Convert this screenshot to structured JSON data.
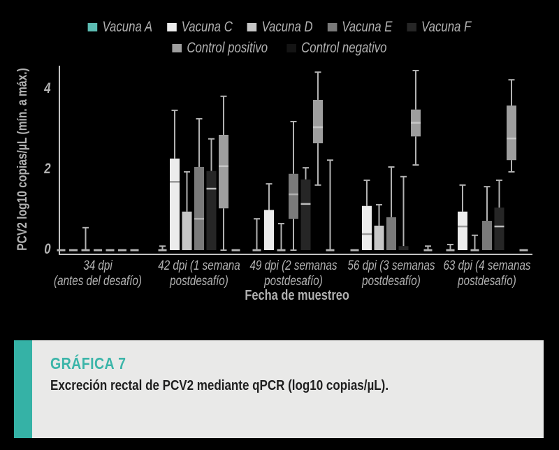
{
  "caption": {
    "title": "GRÁFICA 7",
    "subtitle": "Excreción rectal de PCV2 mediante qPCR (log10 copias/µL)."
  },
  "colors": {
    "background": "#000000",
    "text": "#b2b2b2",
    "axis": "#c2c2c2",
    "whisker": "#b2b2b2",
    "caption_bg": "#e9e9e8",
    "caption_bar": "#35b2a6",
    "caption_title": "#3cb5a9",
    "caption_text": "#1f1f1f"
  },
  "chart_data": {
    "type": "boxplot",
    "title": "",
    "xlabel": "Fecha de muestreo",
    "ylabel": "PCV2 log10 copias/µL (mín. a máx.)",
    "ylim": [
      0,
      4.6
    ],
    "yticks": [
      0,
      2,
      4
    ],
    "grid": false,
    "legend_position": "top",
    "groups": [
      {
        "line1": "34 dpi",
        "line2": "(antes del desafío)"
      },
      {
        "line1": "42 dpi (1 semana",
        "line2": "postdesafío)"
      },
      {
        "line1": "49 dpi (2 semanas",
        "line2": "postdesafío)"
      },
      {
        "line1": "56 dpi (3 semanas",
        "line2": "postdesafío)"
      },
      {
        "line1": "63 dpi (4 semanas",
        "line2": "postdesafío)"
      }
    ],
    "series": [
      {
        "name": "Vacuna A",
        "color": "#5cbcb2",
        "median_color": "#3a8e86",
        "legend_row": 1,
        "boxes": [
          {
            "min": 0,
            "q1": 0,
            "med": 0,
            "q3": 0,
            "max": 0
          },
          {
            "min": 0,
            "q1": 0,
            "med": 0,
            "q3": 0,
            "max": 0.1
          },
          {
            "min": 0,
            "q1": 0,
            "med": 0,
            "q3": 0,
            "max": 0.78
          },
          {
            "min": 0,
            "q1": 0,
            "med": 0,
            "q3": 0,
            "max": 0
          },
          {
            "min": 0,
            "q1": 0,
            "med": 0,
            "q3": 0,
            "max": 0.14
          }
        ]
      },
      {
        "name": "Vacuna C",
        "color": "#ececec",
        "median_color": "#9a9a9a",
        "legend_row": 1,
        "boxes": [
          {
            "min": 0,
            "q1": 0,
            "med": 0,
            "q3": 0,
            "max": 0
          },
          {
            "min": 0,
            "q1": 0,
            "med": 1.7,
            "q3": 2.28,
            "max": 3.48
          },
          {
            "min": 0,
            "q1": 0,
            "med": 0.03,
            "q3": 1.0,
            "max": 1.65
          },
          {
            "min": 0,
            "q1": 0,
            "med": 0.4,
            "q3": 1.1,
            "max": 1.74
          },
          {
            "min": 0,
            "q1": 0,
            "med": 0.59,
            "q3": 0.96,
            "max": 1.62
          }
        ]
      },
      {
        "name": "Vacuna D",
        "color": "#c6c6c6",
        "median_color": "#8f8f8f",
        "legend_row": 1,
        "boxes": [
          {
            "min": 0,
            "q1": 0,
            "med": 0,
            "q3": 0,
            "max": 0.56
          },
          {
            "min": 0,
            "q1": 0,
            "med": 0.02,
            "q3": 0.96,
            "max": 1.95
          },
          {
            "min": 0,
            "q1": 0,
            "med": 0,
            "q3": 0,
            "max": 0.66
          },
          {
            "min": 0,
            "q1": 0,
            "med": 0.02,
            "q3": 0.61,
            "max": 1.13
          },
          {
            "min": 0,
            "q1": 0,
            "med": 0,
            "q3": 0,
            "max": 0.37
          }
        ]
      },
      {
        "name": "Vacuna E",
        "color": "#7a7a7a",
        "median_color": "#b0b0b0",
        "legend_row": 1,
        "boxes": [
          {
            "min": 0,
            "q1": 0,
            "med": 0,
            "q3": 0,
            "max": 0
          },
          {
            "min": 0,
            "q1": 0,
            "med": 0.78,
            "q3": 2.07,
            "max": 3.27
          },
          {
            "min": 0,
            "q1": 0.78,
            "med": 1.39,
            "q3": 1.9,
            "max": 3.2
          },
          {
            "min": 0,
            "q1": 0,
            "med": 0.03,
            "q3": 0.82,
            "max": 2.07
          },
          {
            "min": 0,
            "q1": 0,
            "med": 0.03,
            "q3": 0.73,
            "max": 1.58
          }
        ]
      },
      {
        "name": "Vacuna F",
        "color": "#262626",
        "median_color": "#bdbdbd",
        "legend_row": 1,
        "boxes": [
          {
            "min": 0,
            "q1": 0,
            "med": 0,
            "q3": 0,
            "max": 0
          },
          {
            "min": 0,
            "q1": 0,
            "med": 1.53,
            "q3": 1.97,
            "max": 2.77
          },
          {
            "min": 0,
            "q1": 0,
            "med": 1.15,
            "q3": 1.76,
            "max": 2.05
          },
          {
            "min": 0,
            "q1": 0,
            "med": 0.03,
            "q3": 0.1,
            "max": 1.83
          },
          {
            "min": 0,
            "q1": 0,
            "med": 0.59,
            "q3": 1.06,
            "max": 1.74
          }
        ]
      },
      {
        "name": "Control positivo",
        "color": "#9e9e9e",
        "median_color": "#c6c6c6",
        "legend_row": 2,
        "boxes": [
          {
            "min": 0,
            "q1": 0,
            "med": 0,
            "q3": 0,
            "max": 0
          },
          {
            "min": 0,
            "q1": 1.04,
            "med": 2.09,
            "q3": 2.87,
            "max": 3.83
          },
          {
            "min": 1.62,
            "q1": 2.66,
            "med": 3.06,
            "q3": 3.74,
            "max": 4.43
          },
          {
            "min": 2.12,
            "q1": 2.83,
            "med": 3.17,
            "q3": 3.5,
            "max": 4.47
          },
          {
            "min": 1.95,
            "q1": 2.24,
            "med": 2.78,
            "q3": 3.6,
            "max": 4.24
          }
        ]
      },
      {
        "name": "Control negativo",
        "color": "#141414",
        "median_color": "#8f8f8f",
        "legend_row": 2,
        "boxes": [
          {
            "min": 0,
            "q1": 0,
            "med": 0,
            "q3": 0,
            "max": 0
          },
          {
            "min": 0,
            "q1": 0,
            "med": 0,
            "q3": 0,
            "max": 0
          },
          {
            "min": 0,
            "q1": 0,
            "med": 0,
            "q3": 0,
            "max": 2.24
          },
          {
            "min": 0,
            "q1": 0,
            "med": 0,
            "q3": 0,
            "max": 0.1
          },
          {
            "min": 0,
            "q1": 0,
            "med": 0,
            "q3": 0,
            "max": 0
          }
        ]
      }
    ]
  }
}
